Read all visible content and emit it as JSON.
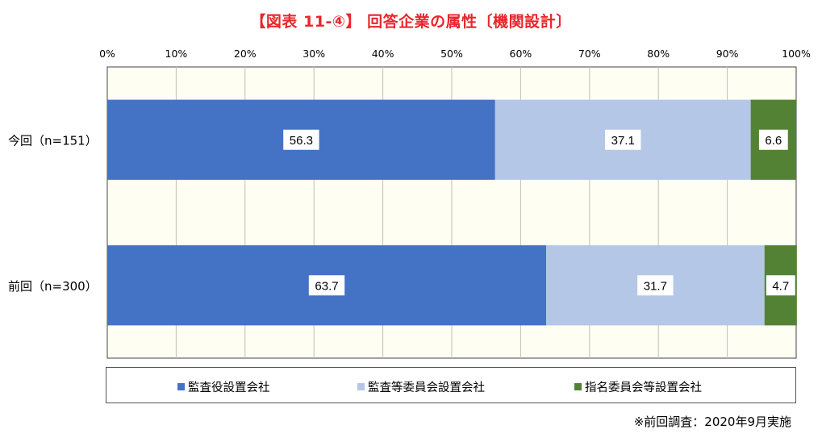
{
  "chart_data": {
    "type": "bar",
    "orientation": "horizontal",
    "stacked": true,
    "title": "【図表 11-④】 回答企業の属性〔機関設計〕",
    "categories": [
      "今回（n=151）",
      "前回（n=300）"
    ],
    "series": [
      {
        "name": "監査役設置会社",
        "values": [
          56.3,
          63.7
        ],
        "color": "#4472c4"
      },
      {
        "name": "監査等委員会設置会社",
        "values": [
          37.1,
          31.7
        ],
        "color": "#b4c7e7"
      },
      {
        "name": "指名委員会等設置会社",
        "values": [
          6.6,
          4.7
        ],
        "color": "#548235"
      }
    ],
    "data_labels": [
      [
        "56.3",
        "37.1",
        "6.6"
      ],
      [
        "63.7",
        "31.7",
        "4.7"
      ]
    ],
    "x_ticks": [
      "0%",
      "10%",
      "20%",
      "30%",
      "40%",
      "50%",
      "60%",
      "70%",
      "80%",
      "90%",
      "100%"
    ],
    "xlim": [
      0,
      100
    ],
    "grid": true,
    "legend_position": "bottom",
    "plot_background": "#fffef2",
    "footnote": "※前回調査：2020年9月実施"
  }
}
